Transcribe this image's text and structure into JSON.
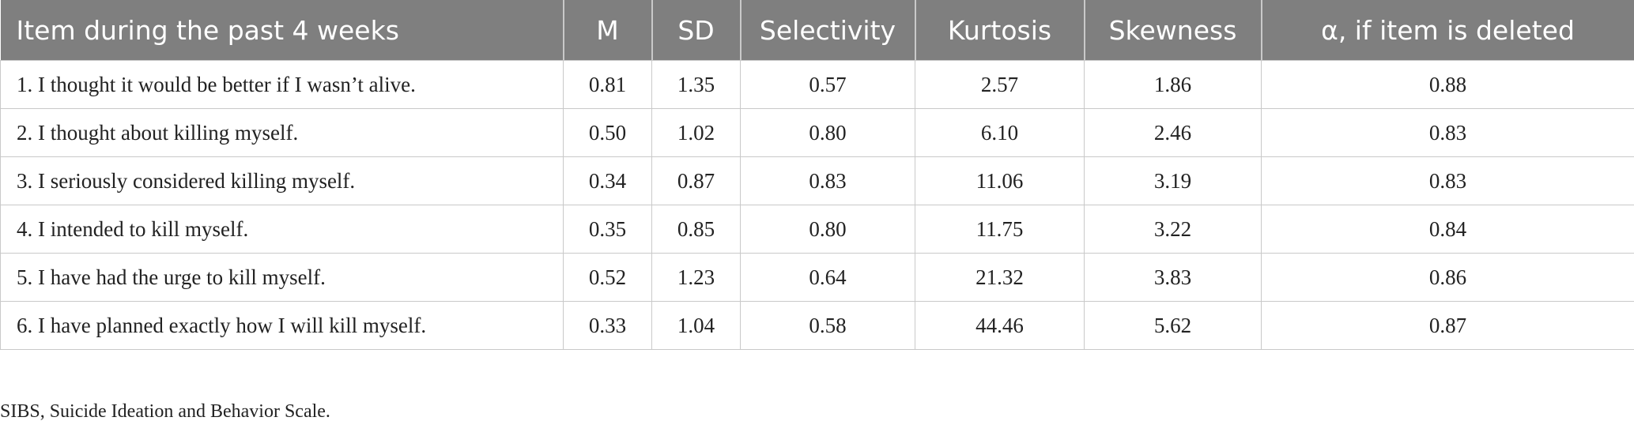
{
  "table": {
    "header": [
      "Item during the past 4 weeks",
      "M",
      "SD",
      "Selectivity",
      "Kurtosis",
      "Skewness",
      "α, if item is deleted"
    ],
    "rows": [
      [
        "1. I thought it would be better if I wasn’t alive.",
        "0.81",
        "1.35",
        "0.57",
        "2.57",
        "1.86",
        "0.88"
      ],
      [
        "2. I thought about killing myself.",
        "0.50",
        "1.02",
        "0.80",
        "6.10",
        "2.46",
        "0.83"
      ],
      [
        "3. I seriously considered killing myself.",
        "0.34",
        "0.87",
        "0.83",
        "11.06",
        "3.19",
        "0.83"
      ],
      [
        "4. I intended to kill myself.",
        "0.35",
        "0.85",
        "0.80",
        "11.75",
        "3.22",
        "0.84"
      ],
      [
        "5. I have had the urge to kill myself.",
        "0.52",
        "1.23",
        "0.64",
        "21.32",
        "3.83",
        "0.86"
      ],
      [
        "6. I have planned exactly how I will kill myself.",
        "0.33",
        "1.04",
        "0.58",
        "44.46",
        "5.62",
        "0.87"
      ]
    ]
  },
  "footnote": "SIBS, Suicide Ideation and Behavior Scale."
}
